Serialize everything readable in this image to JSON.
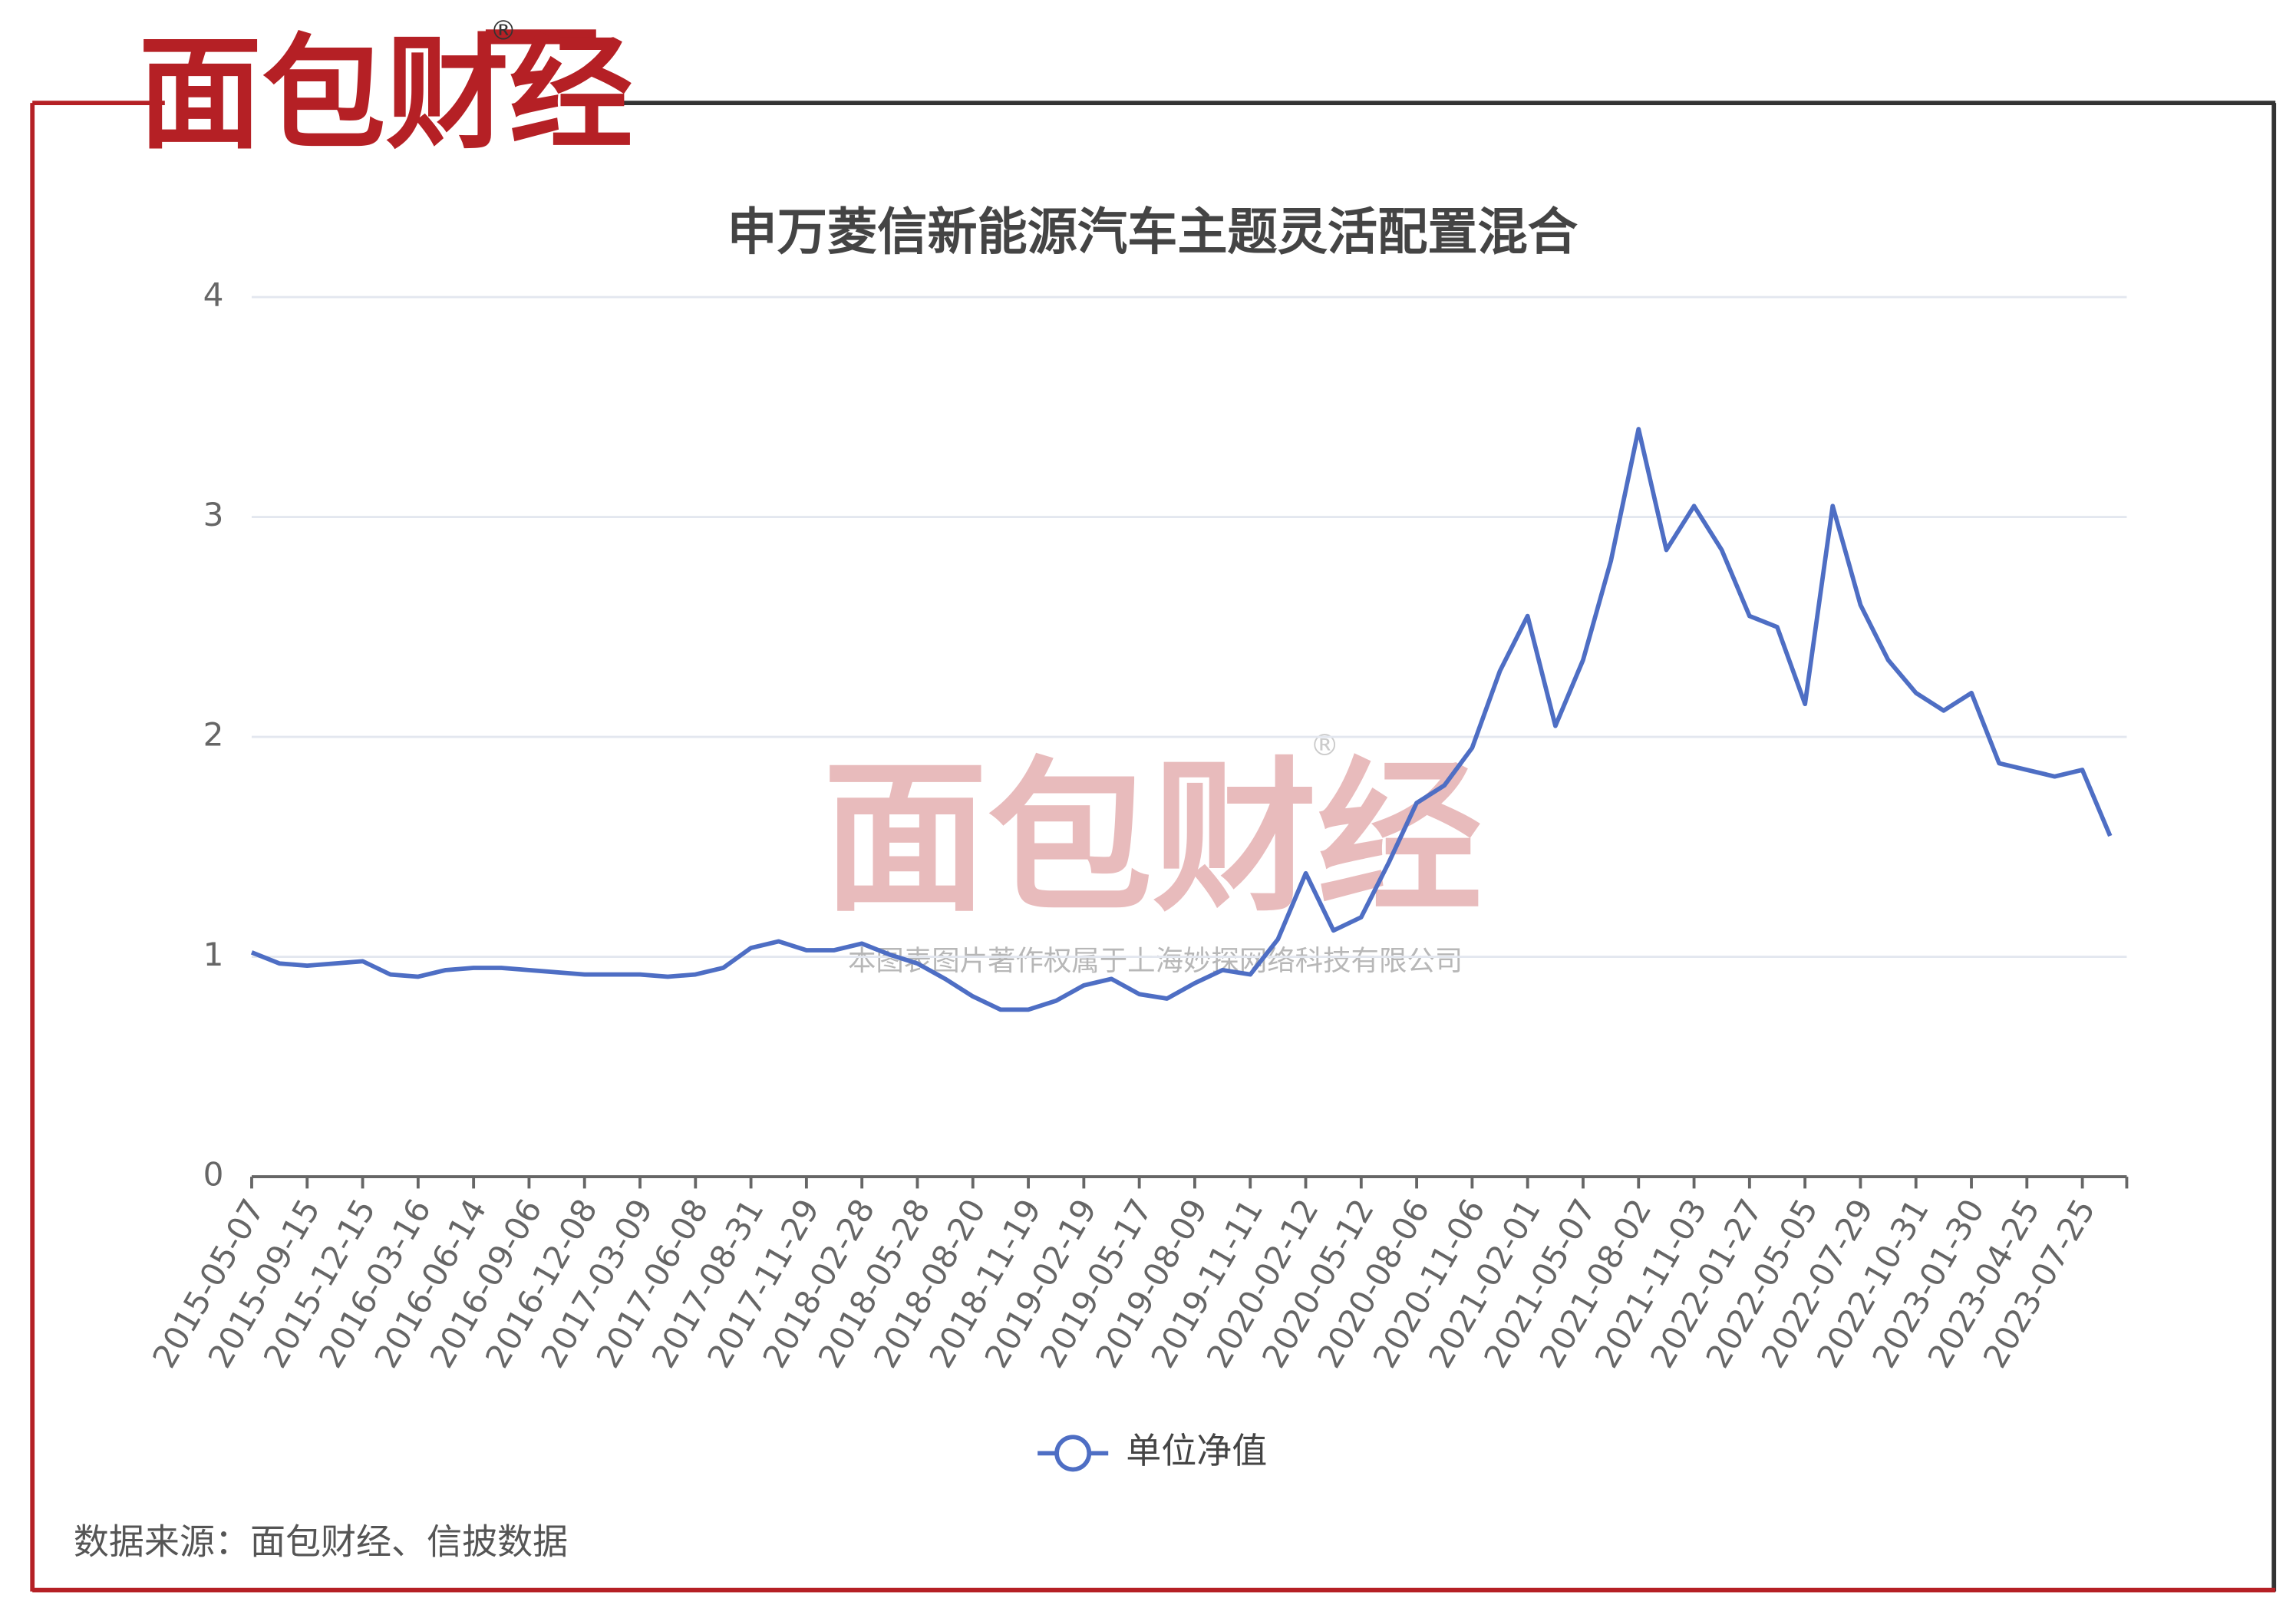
{
  "logo": {
    "text": "面包财经",
    "mark": "®"
  },
  "watermark": {
    "text": "面包财经",
    "mark": "®",
    "notice": "本图表图片著作权属于上海妙探网络科技有限公司"
  },
  "source": "数据来源：面包财经、信披数据",
  "chart_data": {
    "type": "line",
    "title": "申万菱信新能源汽车主题灵活配置混合",
    "categories": [
      "2015-05-07",
      null,
      "2015-09-15",
      null,
      "2015-12-15",
      null,
      "2016-03-16",
      null,
      "2016-06-14",
      null,
      "2016-09-06",
      null,
      "2016-12-08",
      null,
      "2017-03-09",
      null,
      "2017-06-08",
      null,
      "2017-08-31",
      null,
      "2017-11-29",
      null,
      "2018-02-28",
      null,
      "2018-05-28",
      null,
      "2018-08-20",
      null,
      "2018-11-19",
      null,
      "2019-02-19",
      null,
      "2019-05-17",
      null,
      "2019-08-09",
      null,
      "2019-11-11",
      null,
      "2020-02-12",
      null,
      "2020-05-12",
      null,
      "2020-08-06",
      null,
      "2020-11-06",
      null,
      "2021-02-01",
      null,
      "2021-05-07",
      null,
      "2021-08-02",
      null,
      "2021-11-03",
      null,
      "2022-01-27",
      null,
      "2022-05-05",
      null,
      "2022-07-29",
      null,
      "2022-10-31",
      null,
      "2023-01-30",
      null,
      "2023-04-25",
      null,
      "2023-07-25",
      null
    ],
    "series": [
      {
        "name": "单位净值",
        "color": "#4e6ec4",
        "values": [
          1.02,
          0.97,
          0.96,
          0.97,
          0.98,
          0.92,
          0.91,
          0.94,
          0.95,
          0.95,
          0.94,
          0.93,
          0.92,
          0.92,
          0.92,
          0.91,
          0.92,
          0.95,
          1.04,
          1.07,
          1.03,
          1.03,
          1.06,
          1.01,
          0.97,
          0.9,
          0.82,
          0.76,
          0.76,
          0.8,
          0.87,
          0.9,
          0.83,
          0.81,
          0.88,
          0.94,
          0.92,
          1.08,
          1.38,
          1.12,
          1.18,
          1.43,
          1.7,
          1.78,
          1.95,
          2.3,
          2.55,
          2.05,
          2.35,
          2.8,
          3.4,
          2.85,
          3.05,
          2.85,
          2.55,
          2.5,
          2.15,
          3.05,
          2.6,
          2.35,
          2.2,
          2.12,
          2.2,
          1.88,
          1.85,
          1.82,
          1.85,
          1.55
        ]
      }
    ],
    "ylim": [
      0,
      4
    ],
    "yticks": [
      0,
      1,
      2,
      3,
      4
    ],
    "grid": true
  }
}
